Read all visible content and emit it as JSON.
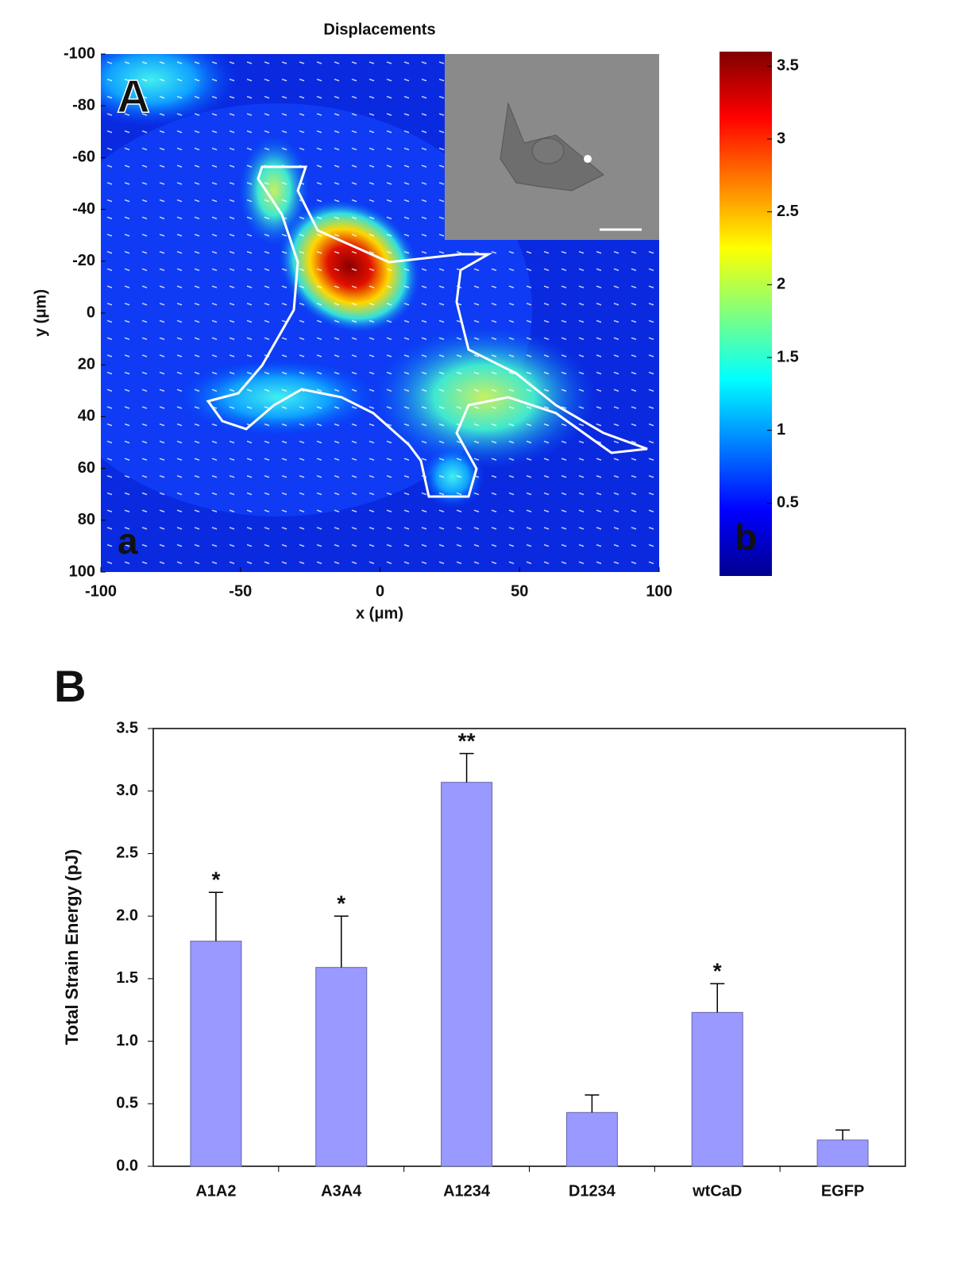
{
  "chart_data": [
    {
      "type": "heatmap",
      "title": "Displacements",
      "panel_label": "A",
      "xlabel": "x (μm)",
      "ylabel": "y (μm)",
      "xlim": [
        -100,
        100
      ],
      "ylim": [
        -100,
        100
      ],
      "y_inverted": true,
      "xticks": [
        -100,
        -50,
        0,
        50,
        100
      ],
      "yticks": [
        -100,
        -80,
        -60,
        -40,
        -20,
        0,
        20,
        40,
        60,
        80,
        100
      ],
      "colorbar_lim": [
        0,
        3.6
      ],
      "colorbar_ticks": [
        0.5,
        1,
        1.5,
        2,
        2.5,
        3,
        3.5
      ],
      "annotations": [
        "a",
        "b"
      ]
    },
    {
      "type": "bar",
      "panel_label": "B",
      "ylabel": "Total Strain Energy (pJ)",
      "categories": [
        "A1A2",
        "A3A4",
        "A1234",
        "D1234",
        "wtCaD",
        "EGFP"
      ],
      "values": [
        1.8,
        1.59,
        3.07,
        0.43,
        1.23,
        0.21
      ],
      "errors": [
        0.39,
        0.41,
        0.23,
        0.14,
        0.23,
        0.08
      ],
      "significance": [
        "*",
        "*",
        "**",
        null,
        "*",
        null
      ],
      "color": "#9999ff",
      "ylim": [
        0,
        3.5
      ],
      "yticks": [
        {
          "value": 0,
          "label": "0.0"
        },
        0.5,
        {
          "value": 1,
          "label": "1.0"
        },
        1.5,
        {
          "value": 2,
          "label": "2.0"
        },
        2.5,
        {
          "value": 3,
          "label": "3.0"
        },
        3.5
      ]
    }
  ]
}
